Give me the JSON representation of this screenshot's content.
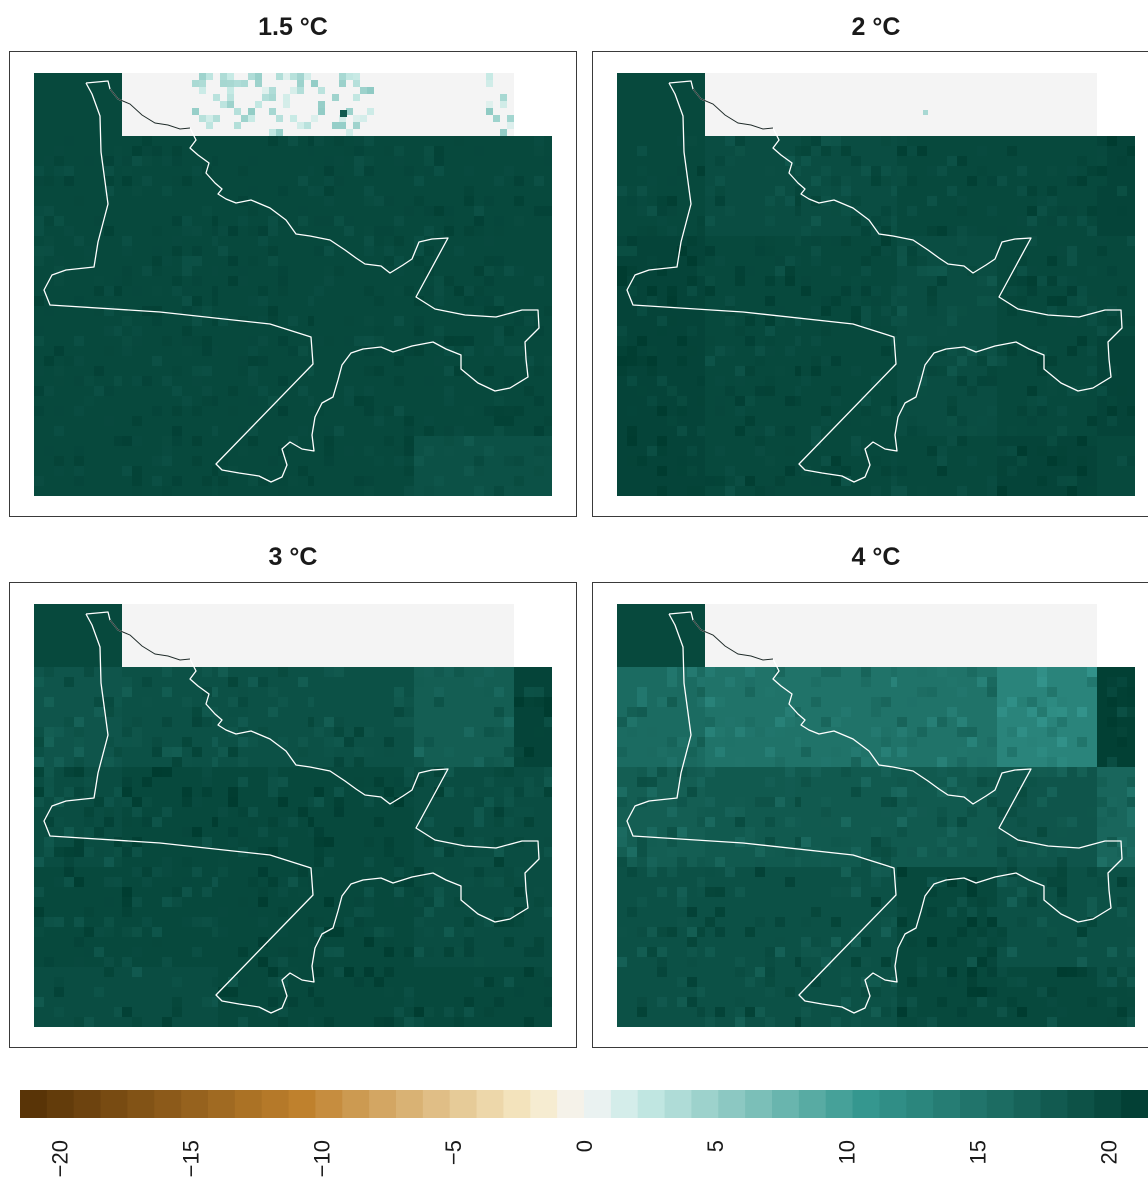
{
  "chart_data": {
    "type": "heatmap",
    "panels": [
      {
        "title": "1.5 °C"
      },
      {
        "title": "2 °C"
      },
      {
        "title": "3 °C"
      },
      {
        "title": "4 °C"
      }
    ],
    "colorbar": {
      "min": -21.5,
      "max": 21.5,
      "ticks": [
        -20,
        -15,
        -10,
        -5,
        0,
        5,
        10,
        15,
        20
      ],
      "tick_labels": [
        "−20",
        "−15",
        "−10",
        "−5",
        "0",
        "5",
        "10",
        "15",
        "20"
      ],
      "low_color": "#543005",
      "mid_color": "#f5f5f5",
      "high_color": "#003c30"
    },
    "palette": {
      "no_data": "#f4f4f4",
      "outline": "#ffffff"
    }
  }
}
